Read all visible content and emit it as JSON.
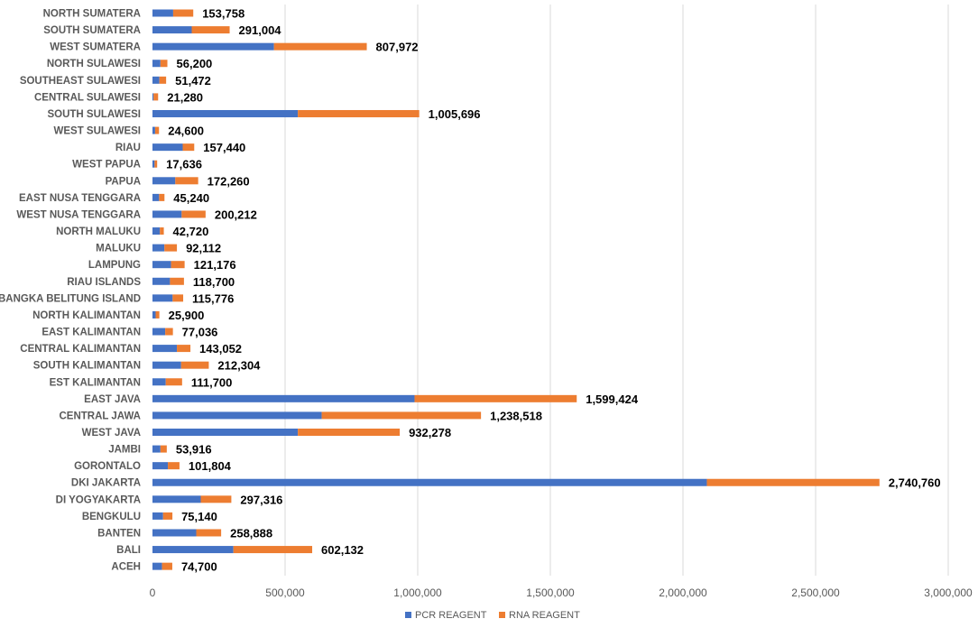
{
  "chart_data": {
    "type": "bar",
    "orientation": "horizontal",
    "stacked": true,
    "title": "",
    "xlabel": "",
    "ylabel": "",
    "xlim": [
      0,
      3000000
    ],
    "x_ticks": [
      "0",
      "500,000",
      "1,000,000",
      "1,500,000",
      "2,000,000",
      "2,500,000",
      "3,000,000"
    ],
    "grid": true,
    "legend_position": "bottom",
    "categories": [
      "NORTH SUMATERA",
      "SOUTH SUMATERA",
      "WEST SUMATERA",
      "NORTH SULAWESI",
      "SOUTHEAST SULAWESI",
      "CENTRAL SULAWESI",
      "SOUTH SULAWESI",
      "WEST SULAWESI",
      "RIAU",
      "WEST PAPUA",
      "PAPUA",
      "EAST NUSA TENGGARA",
      "WEST NUSA TENGGARA",
      "NORTH MALUKU",
      "MALUKU",
      "LAMPUNG",
      "RIAU ISLANDS",
      "BANGKA BELITUNG ISLAND",
      "NORTH KALIMANTAN",
      "EAST KALIMANTAN",
      "CENTRAL KALIMANTAN",
      "SOUTH KALIMANTAN",
      "EST KALIMANTAN",
      "EAST JAVA",
      "CENTRAL JAWA",
      "WEST JAVA",
      "JAMBI",
      "GORONTALO",
      "DKI JAKARTA",
      "DI YOGYAKARTA",
      "BENGKULU",
      "BANTEN",
      "BALI",
      "ACEH"
    ],
    "series": [
      {
        "name": "PCR REAGENT",
        "color": "#4472c4",
        "values": [
          78000,
          148000,
          458000,
          30000,
          26000,
          4000,
          548000,
          10000,
          114000,
          8000,
          86000,
          25000,
          110000,
          28000,
          45000,
          70000,
          66000,
          76000,
          12000,
          48000,
          92000,
          108000,
          50000,
          988000,
          638000,
          548000,
          30000,
          58000,
          2090000,
          182000,
          40000,
          165000,
          305000,
          36000
        ]
      },
      {
        "name": "RNA REAGENT",
        "color": "#ed7d31",
        "values": [
          75758,
          143004,
          349972,
          26200,
          25472,
          17280,
          457696,
          14600,
          43440,
          9636,
          86260,
          20240,
          90212,
          14720,
          47112,
          51176,
          52700,
          39776,
          13900,
          29036,
          51052,
          104304,
          61700,
          611424,
          600518,
          384278,
          23916,
          43804,
          650760,
          115316,
          35140,
          93888,
          297132,
          38700
        ]
      }
    ],
    "data_labels": [
      "153,758",
      "291,004",
      "807,972",
      "56,200",
      "51,472",
      "21,280",
      "1,005,696",
      "24,600",
      "157,440",
      "17,636",
      "172,260",
      "45,240",
      "200,212",
      "42,720",
      "92,112",
      "121,176",
      "118,700",
      "115,776",
      "25,900",
      "77,036",
      "143,052",
      "212,304",
      "111,700",
      "1,599,424",
      "1,238,518",
      "932,278",
      "53,916",
      "101,804",
      "2,740,760",
      "297,316",
      "75,140",
      "258,888",
      "602,132",
      "74,700"
    ]
  }
}
